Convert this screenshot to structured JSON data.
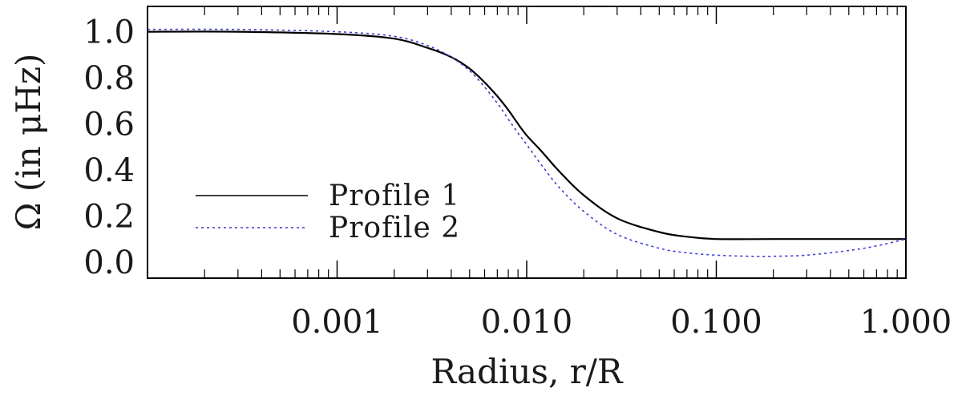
{
  "chart_data": {
    "type": "line",
    "xlabel": "Radius, r/R",
    "ylabel": "Ω (in μHz)",
    "xscale": "log",
    "xlim": [
      0.0001,
      1.0
    ],
    "ylim": [
      -0.07,
      1.11
    ],
    "x_ticks": [
      0.001,
      0.01,
      0.1,
      1.0
    ],
    "x_tick_labels": [
      "0.001",
      "0.010",
      "0.100",
      "1.000"
    ],
    "y_ticks": [
      0.0,
      0.2,
      0.4,
      0.6,
      0.8,
      1.0
    ],
    "y_tick_labels": [
      "0.0",
      "0.2",
      "0.4",
      "0.6",
      "0.8",
      "1.0"
    ],
    "grid": false,
    "legend_position": "lower-left",
    "series": [
      {
        "name": "Profile 1",
        "style": "solid",
        "color": "#000000",
        "x": [
          0.0001,
          0.0003,
          0.001,
          0.002,
          0.003,
          0.004,
          0.005,
          0.006,
          0.007,
          0.008,
          0.009,
          0.01,
          0.012,
          0.015,
          0.02,
          0.03,
          0.05,
          0.07,
          0.1,
          0.2,
          0.5,
          1.0
        ],
        "y": [
          1.0,
          1.0,
          0.99,
          0.97,
          0.93,
          0.89,
          0.84,
          0.78,
          0.72,
          0.66,
          0.6,
          0.55,
          0.48,
          0.39,
          0.29,
          0.19,
          0.13,
          0.11,
          0.1,
          0.1,
          0.1,
          0.1
        ]
      },
      {
        "name": "Profile 2",
        "style": "dotted",
        "color": "#3a3ad6",
        "x": [
          0.0001,
          0.0003,
          0.001,
          0.002,
          0.003,
          0.004,
          0.005,
          0.006,
          0.007,
          0.008,
          0.009,
          0.01,
          0.012,
          0.015,
          0.02,
          0.03,
          0.05,
          0.07,
          0.1,
          0.15,
          0.2,
          0.3,
          0.5,
          0.7,
          1.0
        ],
        "y": [
          1.01,
          1.01,
          1.0,
          0.98,
          0.94,
          0.89,
          0.83,
          0.76,
          0.69,
          0.62,
          0.56,
          0.51,
          0.42,
          0.32,
          0.22,
          0.12,
          0.06,
          0.04,
          0.03,
          0.025,
          0.025,
          0.03,
          0.05,
          0.07,
          0.1
        ]
      }
    ]
  }
}
